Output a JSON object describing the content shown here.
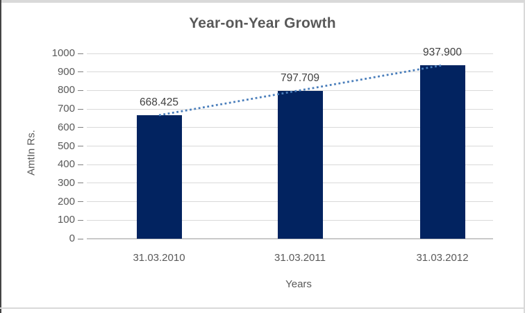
{
  "chart_data": {
    "type": "bar",
    "title": "Year-on-Year Growth",
    "categories": [
      "31.03.2010",
      "31.03.2011",
      "31.03.2012"
    ],
    "values": [
      668.425,
      797.709,
      937.9
    ],
    "value_labels": [
      "668.425",
      "797.709",
      "937.900"
    ],
    "xlabel": "Years",
    "ylabel": "AmtIn Rs.",
    "ylim": [
      0,
      1000
    ],
    "yticks": [
      0,
      100,
      200,
      300,
      400,
      500,
      600,
      700,
      800,
      900,
      1000
    ],
    "grid": true,
    "legend": false,
    "trendline": {
      "type": "linear",
      "style": "dotted"
    },
    "colors": {
      "bar": "#022360",
      "trendline": "#4a7ebb",
      "title_text": "#595959",
      "axis_text": "#595959",
      "data_label_text": "#3f3f3f",
      "gridline": "#d9d9d9",
      "axis_line": "#c9c9c9",
      "tick": "#7f7f7f",
      "frame_light": "#d9d9d9",
      "frame_dark": "#454545",
      "background": "#ffffff"
    }
  }
}
